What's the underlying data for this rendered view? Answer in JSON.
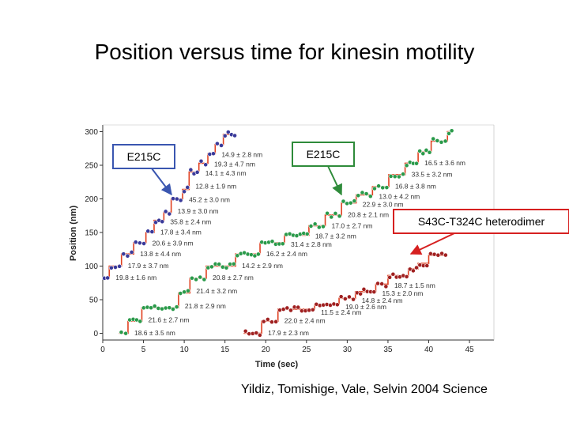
{
  "title": "Position versus time for kinesin motility",
  "citation": "Yildiz, Tomishige, Vale, Selvin 2004 Science",
  "colors": {
    "blue_box": "#3a56b0",
    "green_box": "#2e8b3a",
    "red_box": "#d62020",
    "step_line": "#e04020",
    "marker_blue": "#3a3a9a",
    "marker_green": "#2a9a4a",
    "marker_red": "#a02020"
  },
  "chart_data": {
    "type": "line",
    "xlabel": "Time (sec)",
    "ylabel": "Position (nm)",
    "xlim": [
      0,
      48
    ],
    "ylim": [
      -10,
      310
    ],
    "xticks": [
      0,
      5,
      10,
      15,
      20,
      25,
      30,
      35,
      40,
      45
    ],
    "yticks": [
      0,
      50,
      100,
      150,
      200,
      250,
      300
    ],
    "series": [
      {
        "name": "E215C",
        "marker_color": "blue",
        "steps": [
          [
            0,
            82
          ],
          [
            0.8,
            100
          ],
          [
            2.3,
            118
          ],
          [
            3.8,
            135
          ],
          [
            5.3,
            150
          ],
          [
            6.3,
            168
          ],
          [
            7.5,
            180
          ],
          [
            8.4,
            200
          ],
          [
            9.8,
            214
          ],
          [
            10.6,
            240
          ],
          [
            11.8,
            253
          ],
          [
            12.9,
            267
          ],
          [
            13.8,
            281
          ],
          [
            14.8,
            296
          ],
          [
            16.4,
            296
          ]
        ],
        "step_labels": [
          "19.8 ± 1.6 nm",
          "17.9 ± 3.7 nm",
          "13.8 ± 4.4 nm",
          "20.6 ± 3.9 nm",
          "17.8 ± 3.4 nm",
          "35.8 ± 2.4 nm",
          "13.9 ± 3.0 nm",
          "45.2 ± 3.0 nm",
          "12.8 ± 1.9 nm",
          "14.1 ± 4.3 nm",
          "19.3 ± 4.7 nm",
          "14.9 ± 2.8 nm"
        ]
      },
      {
        "name": "E215C",
        "marker_color": "green",
        "steps": [
          [
            2,
            0
          ],
          [
            3.1,
            18
          ],
          [
            4.8,
            38
          ],
          [
            9.3,
            60
          ],
          [
            10.7,
            82
          ],
          [
            12.7,
            100
          ],
          [
            16.3,
            118
          ],
          [
            19.3,
            135
          ],
          [
            22.3,
            146
          ],
          [
            25.3,
            160
          ],
          [
            27.3,
            176
          ],
          [
            29.3,
            194
          ],
          [
            31.1,
            206
          ],
          [
            33.1,
            218
          ],
          [
            35.1,
            236
          ],
          [
            37.1,
            253
          ],
          [
            38.7,
            270
          ],
          [
            40.3,
            286
          ],
          [
            42.3,
            300
          ],
          [
            43,
            300
          ]
        ],
        "step_labels": [
          "18.6 ± 3.5 nm",
          "21.6 ± 2.7 nm",
          "21.8 ± 2.9 nm",
          "21.4 ± 3.2 nm",
          "20.8 ± 2.7 nm",
          "14.2 ± 2.9 nm",
          "16.2 ± 2.4 nm",
          "31.4 ± 2.8 nm",
          "18.7 ± 3.2 nm",
          "17.0 ± 2.7 nm",
          "20.8 ± 2.1 nm",
          "22.9 ± 3.0 nm",
          "13.0 ± 4.2 nm",
          "16.8 ± 3.8 nm",
          "33.5 ± 3.2 nm",
          "16.5 ± 3.6 nm"
        ]
      },
      {
        "name": "S43C-T324C heterodimer",
        "marker_color": "red",
        "steps": [
          [
            17.3,
            0
          ],
          [
            19.5,
            18
          ],
          [
            21.5,
            36
          ],
          [
            26,
            43
          ],
          [
            29,
            52
          ],
          [
            31,
            62
          ],
          [
            33.5,
            73
          ],
          [
            35,
            86
          ],
          [
            37.5,
            96
          ],
          [
            38.7,
            104
          ],
          [
            40,
            116
          ],
          [
            42.3,
            116
          ]
        ],
        "step_labels": [
          "17.9 ± 2.3 nm",
          "22.0 ± 2.4 nm",
          "11.5 ± 2.4 nm",
          "19.0 ± 2.6 nm",
          "14.8 ± 2.4 nm",
          "15.3 ± 2.0 nm",
          "18.7 ± 1.5 nm"
        ]
      }
    ],
    "annotations": [
      {
        "text": "E215C",
        "box_color": "blue"
      },
      {
        "text": "E215C",
        "box_color": "green"
      },
      {
        "text": "S43C-T324C heterodimer",
        "box_color": "red"
      }
    ],
    "grid": false,
    "legend": "none"
  }
}
